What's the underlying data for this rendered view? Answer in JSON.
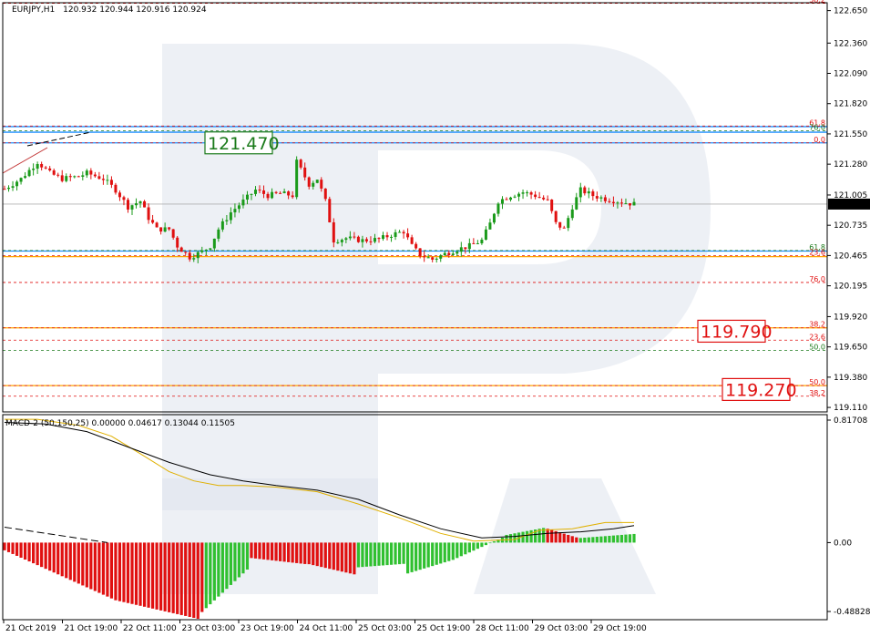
{
  "header": {
    "symbol": "EURJPY,H1",
    "ohlc": "120.932 120.944 120.916 120.924"
  },
  "macd_header": "MACD-2 (50,150,25) 0.00000 0.04617 0.13044 0.11505",
  "current_price": "120.924",
  "price_callouts": [
    {
      "text": "121.470",
      "value": 121.47,
      "color": "#1a7a1a"
    },
    {
      "text": "119.790",
      "value": 119.79,
      "color": "#e01010"
    },
    {
      "text": "119.270",
      "value": 119.27,
      "color": "#e01010"
    }
  ],
  "fib_levels": [
    {
      "label": "38.2",
      "value": 122.715,
      "color": "#e01010",
      "style": "dash"
    },
    {
      "label": "61.8",
      "value": 121.62,
      "color": "#e01010",
      "style": "dash"
    },
    {
      "label": "76.0",
      "value": 121.578,
      "color": "#1a7a1a",
      "style": "dash"
    },
    {
      "label": "0.0",
      "value": 121.47,
      "color": "#e01010",
      "style": "dash"
    },
    {
      "label": "61.8",
      "value": 120.51,
      "color": "#1a7a1a",
      "style": "dash"
    },
    {
      "label": "23.6",
      "value": 120.465,
      "color": "#e01010",
      "style": "dash"
    },
    {
      "label": "76.0",
      "value": 120.225,
      "color": "#e01010",
      "style": "dash"
    },
    {
      "label": "38.2",
      "value": 119.82,
      "color": "#e01010",
      "style": "dash"
    },
    {
      "label": "23.6",
      "value": 119.71,
      "color": "#e01010",
      "style": "dash"
    },
    {
      "label": "50.0",
      "value": 119.62,
      "color": "#1a7a1a",
      "style": "dash"
    },
    {
      "label": "50.0",
      "value": 119.305,
      "color": "#e01010",
      "style": "dash"
    },
    {
      "label": "38.2",
      "value": 119.21,
      "color": "#e01010",
      "style": "dash"
    }
  ],
  "solid_levels": [
    {
      "value": 121.615,
      "color": "#1e90ff"
    },
    {
      "value": 121.565,
      "color": "#1e90ff"
    },
    {
      "value": 121.47,
      "color": "#1e90ff"
    },
    {
      "value": 120.505,
      "color": "#1e90ff"
    },
    {
      "value": 120.455,
      "color": "#ffa500"
    },
    {
      "value": 119.82,
      "color": "#ffa500"
    },
    {
      "value": 119.305,
      "color": "#ffa500"
    }
  ],
  "chart_data": {
    "type": "candlestick",
    "price_axis": {
      "ticks": [
        "122.650",
        "122.360",
        "122.090",
        "121.820",
        "121.550",
        "121.280",
        "121.005",
        "120.735",
        "120.465",
        "120.195",
        "119.920",
        "119.650",
        "119.380",
        "119.110"
      ],
      "ylim": [
        119.07,
        122.72
      ]
    },
    "macd_axis": {
      "ticks": [
        "0.81708",
        "0.00",
        "-0.48828"
      ],
      "ylim": [
        -0.5,
        0.83
      ]
    },
    "time_axis": [
      "21 Oct 2019",
      "21 Oct 19:00",
      "22 Oct 11:00",
      "23 Oct 03:00",
      "23 Oct 19:00",
      "24 Oct 11:00",
      "25 Oct 03:00",
      "25 Oct 19:00",
      "28 Oct 11:00",
      "29 Oct 03:00",
      "29 Oct 19:00"
    ],
    "close_path": [
      [
        0,
        121.06
      ],
      [
        4,
        121.15
      ],
      [
        8,
        121.3
      ],
      [
        11,
        121.2
      ],
      [
        14,
        121.15
      ],
      [
        18,
        121.17
      ],
      [
        20,
        121.2
      ],
      [
        24,
        121.15
      ],
      [
        27,
        121.05
      ],
      [
        30,
        120.9
      ],
      [
        33,
        120.95
      ],
      [
        35,
        120.8
      ],
      [
        37,
        120.7
      ],
      [
        40,
        120.7
      ],
      [
        42,
        120.55
      ],
      [
        45,
        120.45
      ],
      [
        48,
        120.5
      ],
      [
        50,
        120.55
      ],
      [
        52,
        120.7
      ],
      [
        55,
        120.85
      ],
      [
        58,
        120.95
      ],
      [
        61,
        121.05
      ],
      [
        64,
        121.0
      ],
      [
        67,
        121.02
      ],
      [
        70,
        121.0
      ],
      [
        71,
        121.3
      ],
      [
        74,
        121.1
      ],
      [
        76,
        121.15
      ],
      [
        78,
        120.95
      ],
      [
        80,
        120.6
      ],
      [
        83,
        120.62
      ],
      [
        87,
        120.6
      ],
      [
        91,
        120.61
      ],
      [
        94,
        120.65
      ],
      [
        97,
        120.68
      ],
      [
        99,
        120.55
      ],
      [
        101,
        120.47
      ],
      [
        104,
        120.43
      ],
      [
        107,
        120.48
      ],
      [
        110,
        120.52
      ],
      [
        113,
        120.55
      ],
      [
        116,
        120.6
      ],
      [
        118,
        120.75
      ],
      [
        120,
        120.95
      ],
      [
        123,
        121.0
      ],
      [
        126,
        121.03
      ],
      [
        129,
        121.0
      ],
      [
        132,
        120.95
      ],
      [
        134,
        120.75
      ],
      [
        136,
        120.7
      ],
      [
        138,
        120.9
      ],
      [
        140,
        121.05
      ],
      [
        143,
        121.0
      ],
      [
        146,
        120.97
      ],
      [
        149,
        120.95
      ],
      [
        152,
        120.93
      ],
      [
        153,
        120.924
      ]
    ],
    "macd_signal": [
      [
        0,
        0.8
      ],
      [
        8,
        0.8
      ],
      [
        18,
        0.76
      ],
      [
        26,
        0.69
      ],
      [
        34,
        0.56
      ],
      [
        40,
        0.46
      ],
      [
        46,
        0.4
      ],
      [
        52,
        0.37
      ],
      [
        58,
        0.37
      ],
      [
        66,
        0.36
      ],
      [
        76,
        0.33
      ],
      [
        86,
        0.25
      ],
      [
        96,
        0.16
      ],
      [
        106,
        0.06
      ],
      [
        114,
        0.01
      ],
      [
        124,
        0.02
      ],
      [
        130,
        0.08
      ],
      [
        138,
        0.09
      ],
      [
        146,
        0.13
      ],
      [
        153,
        0.13
      ]
    ],
    "macd_main": [
      [
        0,
        0.78
      ],
      [
        10,
        0.77
      ],
      [
        20,
        0.72
      ],
      [
        30,
        0.62
      ],
      [
        40,
        0.52
      ],
      [
        50,
        0.44
      ],
      [
        58,
        0.4
      ],
      [
        66,
        0.37
      ],
      [
        76,
        0.34
      ],
      [
        86,
        0.28
      ],
      [
        96,
        0.18
      ],
      [
        106,
        0.09
      ],
      [
        116,
        0.03
      ],
      [
        124,
        0.04
      ],
      [
        132,
        0.06
      ],
      [
        140,
        0.07
      ],
      [
        148,
        0.09
      ],
      [
        153,
        0.11
      ]
    ],
    "macd_main_dashed": [
      [
        0,
        0.1
      ],
      [
        25,
        0.0
      ]
    ]
  }
}
